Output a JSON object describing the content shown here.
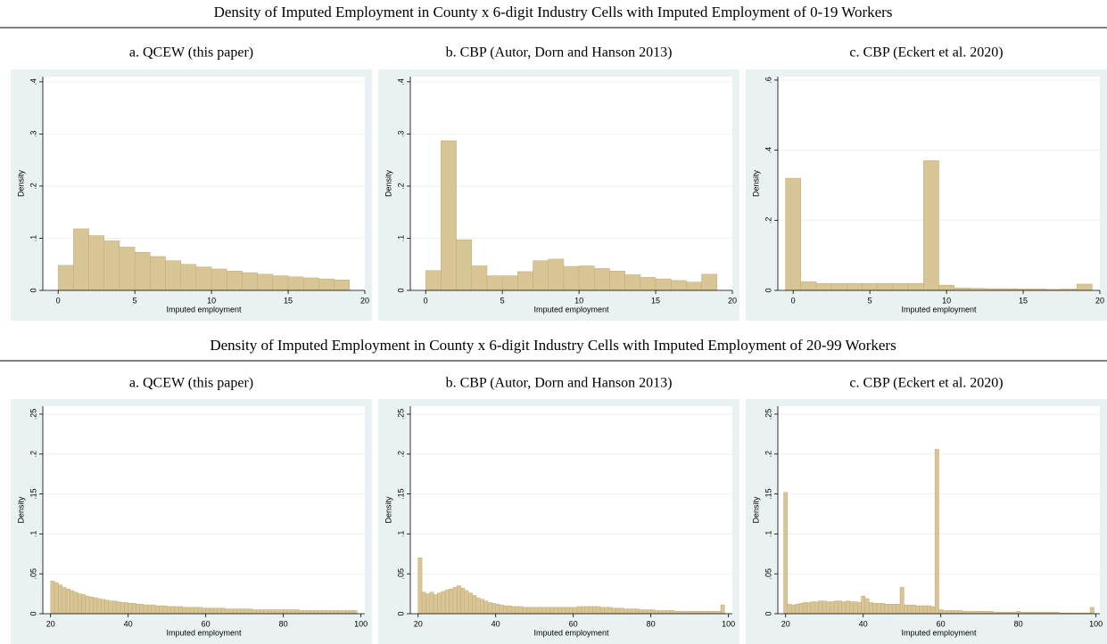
{
  "section_titles": [
    "Density of Imputed Employment in County x 6-digit Industry Cells with Imputed Employment of 0-19 Workers",
    "Density of Imputed Employment in County x 6-digit Industry Cells with Imputed Employment of 20-99 Workers"
  ],
  "chart_data": [
    {
      "type": "histogram",
      "title": "a. QCEW (this paper)",
      "xlabel": "Imputed employment",
      "ylabel": "Density",
      "color": "#d8c595",
      "grid": true,
      "bins": [
        0,
        1,
        2,
        3,
        4,
        5,
        6,
        7,
        8,
        9,
        10,
        11,
        12,
        13,
        14,
        15,
        16,
        17,
        18,
        19
      ],
      "values": [
        0.048,
        0.118,
        0.105,
        0.095,
        0.083,
        0.073,
        0.065,
        0.057,
        0.05,
        0.045,
        0.041,
        0.037,
        0.034,
        0.031,
        0.028,
        0.026,
        0.024,
        0.022,
        0.02
      ],
      "xlim": [
        -1,
        20
      ],
      "ylim": [
        0,
        0.41
      ],
      "xticks": [
        0,
        5,
        10,
        15,
        20
      ],
      "yticks": [
        0,
        {
          "value": 0.1,
          "label": ".1"
        },
        {
          "value": 0.2,
          "label": ".2"
        },
        {
          "value": 0.3,
          "label": ".3"
        },
        {
          "value": 0.4,
          "label": ".4"
        }
      ]
    },
    {
      "type": "histogram",
      "title": "b. CBP (Autor, Dorn and Hanson 2013)",
      "xlabel": "Imputed employment",
      "ylabel": "Density",
      "color": "#d8c595",
      "grid": true,
      "bins": [
        0,
        1,
        2,
        3,
        4,
        5,
        6,
        7,
        8,
        9,
        10,
        11,
        12,
        13,
        14,
        15,
        16,
        17,
        18,
        19
      ],
      "values": [
        0.038,
        0.287,
        0.097,
        0.047,
        0.028,
        0.028,
        0.036,
        0.057,
        0.06,
        0.046,
        0.047,
        0.042,
        0.037,
        0.03,
        0.025,
        0.022,
        0.019,
        0.016,
        0.031
      ],
      "xlim": [
        -1,
        20
      ],
      "ylim": [
        0,
        0.41
      ],
      "xticks": [
        0,
        5,
        10,
        15,
        20
      ],
      "yticks": [
        0,
        {
          "value": 0.1,
          "label": ".1"
        },
        {
          "value": 0.2,
          "label": ".2"
        },
        {
          "value": 0.3,
          "label": ".3"
        },
        {
          "value": 0.4,
          "label": ".4"
        }
      ]
    },
    {
      "type": "histogram",
      "title": "c. CBP (Eckert et al. 2020)",
      "xlabel": "Imputed employment",
      "ylabel": "Density",
      "color": "#d8c595",
      "grid": true,
      "bins": [
        -0.5,
        0.5,
        1.5,
        2.5,
        3.5,
        4.5,
        5.5,
        6.5,
        7.5,
        8.5,
        9.5,
        10.5,
        11.5,
        12.5,
        13.5,
        14.5,
        15.5,
        16.5,
        17.5,
        18.5,
        19.5
      ],
      "values": [
        0.32,
        0.025,
        0.02,
        0.02,
        0.02,
        0.02,
        0.02,
        0.02,
        0.02,
        0.37,
        0.015,
        0.007,
        0.006,
        0.005,
        0.005,
        0.004,
        0.004,
        0.003,
        0.004,
        0.018
      ],
      "xlim": [
        -1,
        20
      ],
      "ylim": [
        0,
        0.61
      ],
      "xticks": [
        0,
        5,
        10,
        15,
        20
      ],
      "yticks": [
        0,
        {
          "value": 0.2,
          "label": ".2"
        },
        {
          "value": 0.4,
          "label": ".4"
        },
        {
          "value": 0.6,
          "label": ".6"
        }
      ]
    },
    {
      "type": "histogram",
      "title": "a. QCEW (this paper)",
      "xlabel": "Imputed employment",
      "ylabel": "Density",
      "color": "#d8c595",
      "grid": true,
      "bins": [
        20,
        21,
        22,
        23,
        24,
        25,
        26,
        27,
        28,
        29,
        30,
        31,
        32,
        33,
        34,
        35,
        36,
        37,
        38,
        39,
        40,
        41,
        42,
        43,
        44,
        45,
        46,
        47,
        48,
        49,
        50,
        51,
        52,
        53,
        54,
        55,
        56,
        57,
        58,
        59,
        60,
        61,
        62,
        63,
        64,
        65,
        66,
        67,
        68,
        69,
        70,
        71,
        72,
        73,
        74,
        75,
        76,
        77,
        78,
        79,
        80,
        81,
        82,
        83,
        84,
        85,
        86,
        87,
        88,
        89,
        90,
        91,
        92,
        93,
        94,
        95,
        96,
        97,
        98,
        99
      ],
      "values": [
        0.041,
        0.039,
        0.036,
        0.033,
        0.031,
        0.029,
        0.027,
        0.025,
        0.024,
        0.022,
        0.021,
        0.02,
        0.019,
        0.018,
        0.017,
        0.016,
        0.016,
        0.015,
        0.014,
        0.014,
        0.013,
        0.013,
        0.012,
        0.012,
        0.011,
        0.011,
        0.011,
        0.01,
        0.01,
        0.01,
        0.009,
        0.009,
        0.009,
        0.009,
        0.008,
        0.008,
        0.008,
        0.008,
        0.008,
        0.007,
        0.007,
        0.007,
        0.007,
        0.007,
        0.007,
        0.006,
        0.006,
        0.006,
        0.006,
        0.006,
        0.006,
        0.006,
        0.005,
        0.005,
        0.005,
        0.005,
        0.005,
        0.005,
        0.005,
        0.005,
        0.005,
        0.005,
        0.005,
        0.005,
        0.004,
        0.004,
        0.004,
        0.004,
        0.004,
        0.004,
        0.004,
        0.004,
        0.004,
        0.004,
        0.004,
        0.004,
        0.004,
        0.004,
        0.004
      ],
      "xlim": [
        18,
        101
      ],
      "ylim": [
        0,
        0.26
      ],
      "xticks": [
        20,
        40,
        60,
        80,
        100
      ],
      "yticks": [
        0,
        {
          "value": 0.05,
          "label": ".05"
        },
        {
          "value": 0.1,
          "label": ".1"
        },
        {
          "value": 0.15,
          "label": ".15"
        },
        {
          "value": 0.2,
          "label": ".2"
        },
        {
          "value": 0.25,
          "label": ".25"
        }
      ]
    },
    {
      "type": "histogram",
      "title": "b. CBP (Autor, Dorn and Hanson 2013)",
      "xlabel": "Imputed employment",
      "ylabel": "Density",
      "color": "#d8c595",
      "grid": true,
      "bins": [
        20,
        21,
        22,
        23,
        24,
        25,
        26,
        27,
        28,
        29,
        30,
        31,
        32,
        33,
        34,
        35,
        36,
        37,
        38,
        39,
        40,
        41,
        42,
        43,
        44,
        45,
        46,
        47,
        48,
        49,
        50,
        51,
        52,
        53,
        54,
        55,
        56,
        57,
        58,
        59,
        60,
        61,
        62,
        63,
        64,
        65,
        66,
        67,
        68,
        69,
        70,
        71,
        72,
        73,
        74,
        75,
        76,
        77,
        78,
        79,
        80,
        81,
        82,
        83,
        84,
        85,
        86,
        87,
        88,
        89,
        90,
        91,
        92,
        93,
        94,
        95,
        96,
        97,
        98,
        99
      ],
      "values": [
        0.07,
        0.027,
        0.025,
        0.027,
        0.024,
        0.026,
        0.028,
        0.03,
        0.031,
        0.033,
        0.035,
        0.032,
        0.029,
        0.026,
        0.023,
        0.02,
        0.018,
        0.016,
        0.014,
        0.013,
        0.012,
        0.011,
        0.01,
        0.01,
        0.009,
        0.009,
        0.009,
        0.008,
        0.008,
        0.008,
        0.008,
        0.008,
        0.008,
        0.008,
        0.008,
        0.008,
        0.008,
        0.008,
        0.008,
        0.008,
        0.008,
        0.009,
        0.009,
        0.009,
        0.009,
        0.009,
        0.009,
        0.008,
        0.008,
        0.008,
        0.007,
        0.007,
        0.007,
        0.006,
        0.006,
        0.006,
        0.006,
        0.005,
        0.005,
        0.005,
        0.005,
        0.004,
        0.004,
        0.004,
        0.004,
        0.004,
        0.003,
        0.003,
        0.003,
        0.003,
        0.003,
        0.003,
        0.003,
        0.003,
        0.003,
        0.003,
        0.003,
        0.003,
        0.011
      ],
      "xlim": [
        18,
        101
      ],
      "ylim": [
        0,
        0.26
      ],
      "xticks": [
        20,
        40,
        60,
        80,
        100
      ],
      "yticks": [
        0,
        {
          "value": 0.05,
          "label": ".05"
        },
        {
          "value": 0.1,
          "label": ".1"
        },
        {
          "value": 0.15,
          "label": ".15"
        },
        {
          "value": 0.2,
          "label": ".2"
        },
        {
          "value": 0.25,
          "label": ".25"
        }
      ]
    },
    {
      "type": "histogram",
      "title": "c. CBP (Eckert et al. 2020)",
      "xlabel": "Imputed employment",
      "ylabel": "Density",
      "color": "#d8c595",
      "grid": true,
      "bins": [
        19.5,
        20.5,
        21.5,
        22.5,
        23.5,
        24.5,
        25.5,
        26.5,
        27.5,
        28.5,
        29.5,
        30.5,
        31.5,
        32.5,
        33.5,
        34.5,
        35.5,
        36.5,
        37.5,
        38.5,
        39.5,
        40.5,
        41.5,
        42.5,
        43.5,
        44.5,
        45.5,
        46.5,
        47.5,
        48.5,
        49.5,
        50.5,
        51.5,
        52.5,
        53.5,
        54.5,
        55.5,
        56.5,
        57.5,
        58.5,
        59.5,
        60.5,
        61.5,
        62.5,
        63.5,
        64.5,
        65.5,
        66.5,
        67.5,
        68.5,
        69.5,
        70.5,
        71.5,
        72.5,
        73.5,
        74.5,
        75.5,
        76.5,
        77.5,
        78.5,
        79.5,
        80.5,
        81.5,
        82.5,
        83.5,
        84.5,
        85.5,
        86.5,
        87.5,
        88.5,
        89.5,
        90.5,
        91.5,
        92.5,
        93.5,
        94.5,
        95.5,
        96.5,
        97.5,
        98.5,
        99.5
      ],
      "values": [
        0.152,
        0.012,
        0.011,
        0.012,
        0.013,
        0.014,
        0.014,
        0.015,
        0.015,
        0.016,
        0.016,
        0.015,
        0.015,
        0.016,
        0.016,
        0.015,
        0.016,
        0.015,
        0.015,
        0.014,
        0.022,
        0.019,
        0.014,
        0.013,
        0.013,
        0.013,
        0.012,
        0.012,
        0.012,
        0.012,
        0.033,
        0.011,
        0.011,
        0.011,
        0.01,
        0.01,
        0.01,
        0.01,
        0.009,
        0.206,
        0.005,
        0.004,
        0.004,
        0.004,
        0.004,
        0.004,
        0.003,
        0.003,
        0.003,
        0.003,
        0.003,
        0.003,
        0.003,
        0.003,
        0.002,
        0.002,
        0.002,
        0.002,
        0.002,
        0.002,
        0.003,
        0.002,
        0.002,
        0.002,
        0.002,
        0.002,
        0.002,
        0.002,
        0.002,
        0.002,
        0.002,
        0.001,
        0.001,
        0.001,
        0.001,
        0.001,
        0.001,
        0.001,
        0.001,
        0.008
      ],
      "xlim": [
        18,
        101
      ],
      "ylim": [
        0,
        0.26
      ],
      "xticks": [
        20,
        40,
        60,
        80,
        100
      ],
      "yticks": [
        0,
        {
          "value": 0.05,
          "label": ".05"
        },
        {
          "value": 0.1,
          "label": ".1"
        },
        {
          "value": 0.15,
          "label": ".15"
        },
        {
          "value": 0.2,
          "label": ".2"
        },
        {
          "value": 0.25,
          "label": ".25"
        }
      ]
    }
  ]
}
